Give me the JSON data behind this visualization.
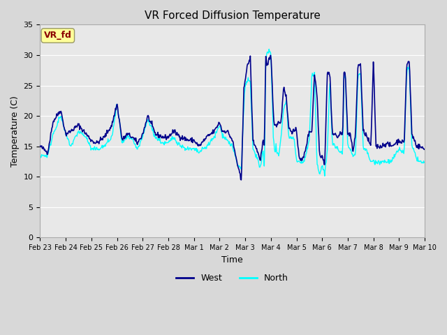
{
  "title": "VR Forced Diffusion Temperature",
  "xlabel": "Time",
  "ylabel": "Temperature (C)",
  "ylim": [
    0,
    35
  ],
  "yticks": [
    0,
    5,
    10,
    15,
    20,
    25,
    30,
    35
  ],
  "west_color": "#00008B",
  "north_color": "#00FFFF",
  "label_box_color": "#FFFF99",
  "label_box_edge": "#999966",
  "label_text_color": "#8B0000",
  "label_text": "VR_fd",
  "x_tick_labels": [
    "Feb 23",
    "Feb 24",
    "Feb 25",
    "Feb 26",
    "Feb 27",
    "Feb 28",
    "Mar 1",
    "Mar 2",
    "Mar 3",
    "Mar 4",
    "Mar 5",
    "Mar 6",
    "Mar 7",
    "Mar 8",
    "Mar 9",
    "Mar 10"
  ],
  "num_days": 15,
  "seed": 42
}
